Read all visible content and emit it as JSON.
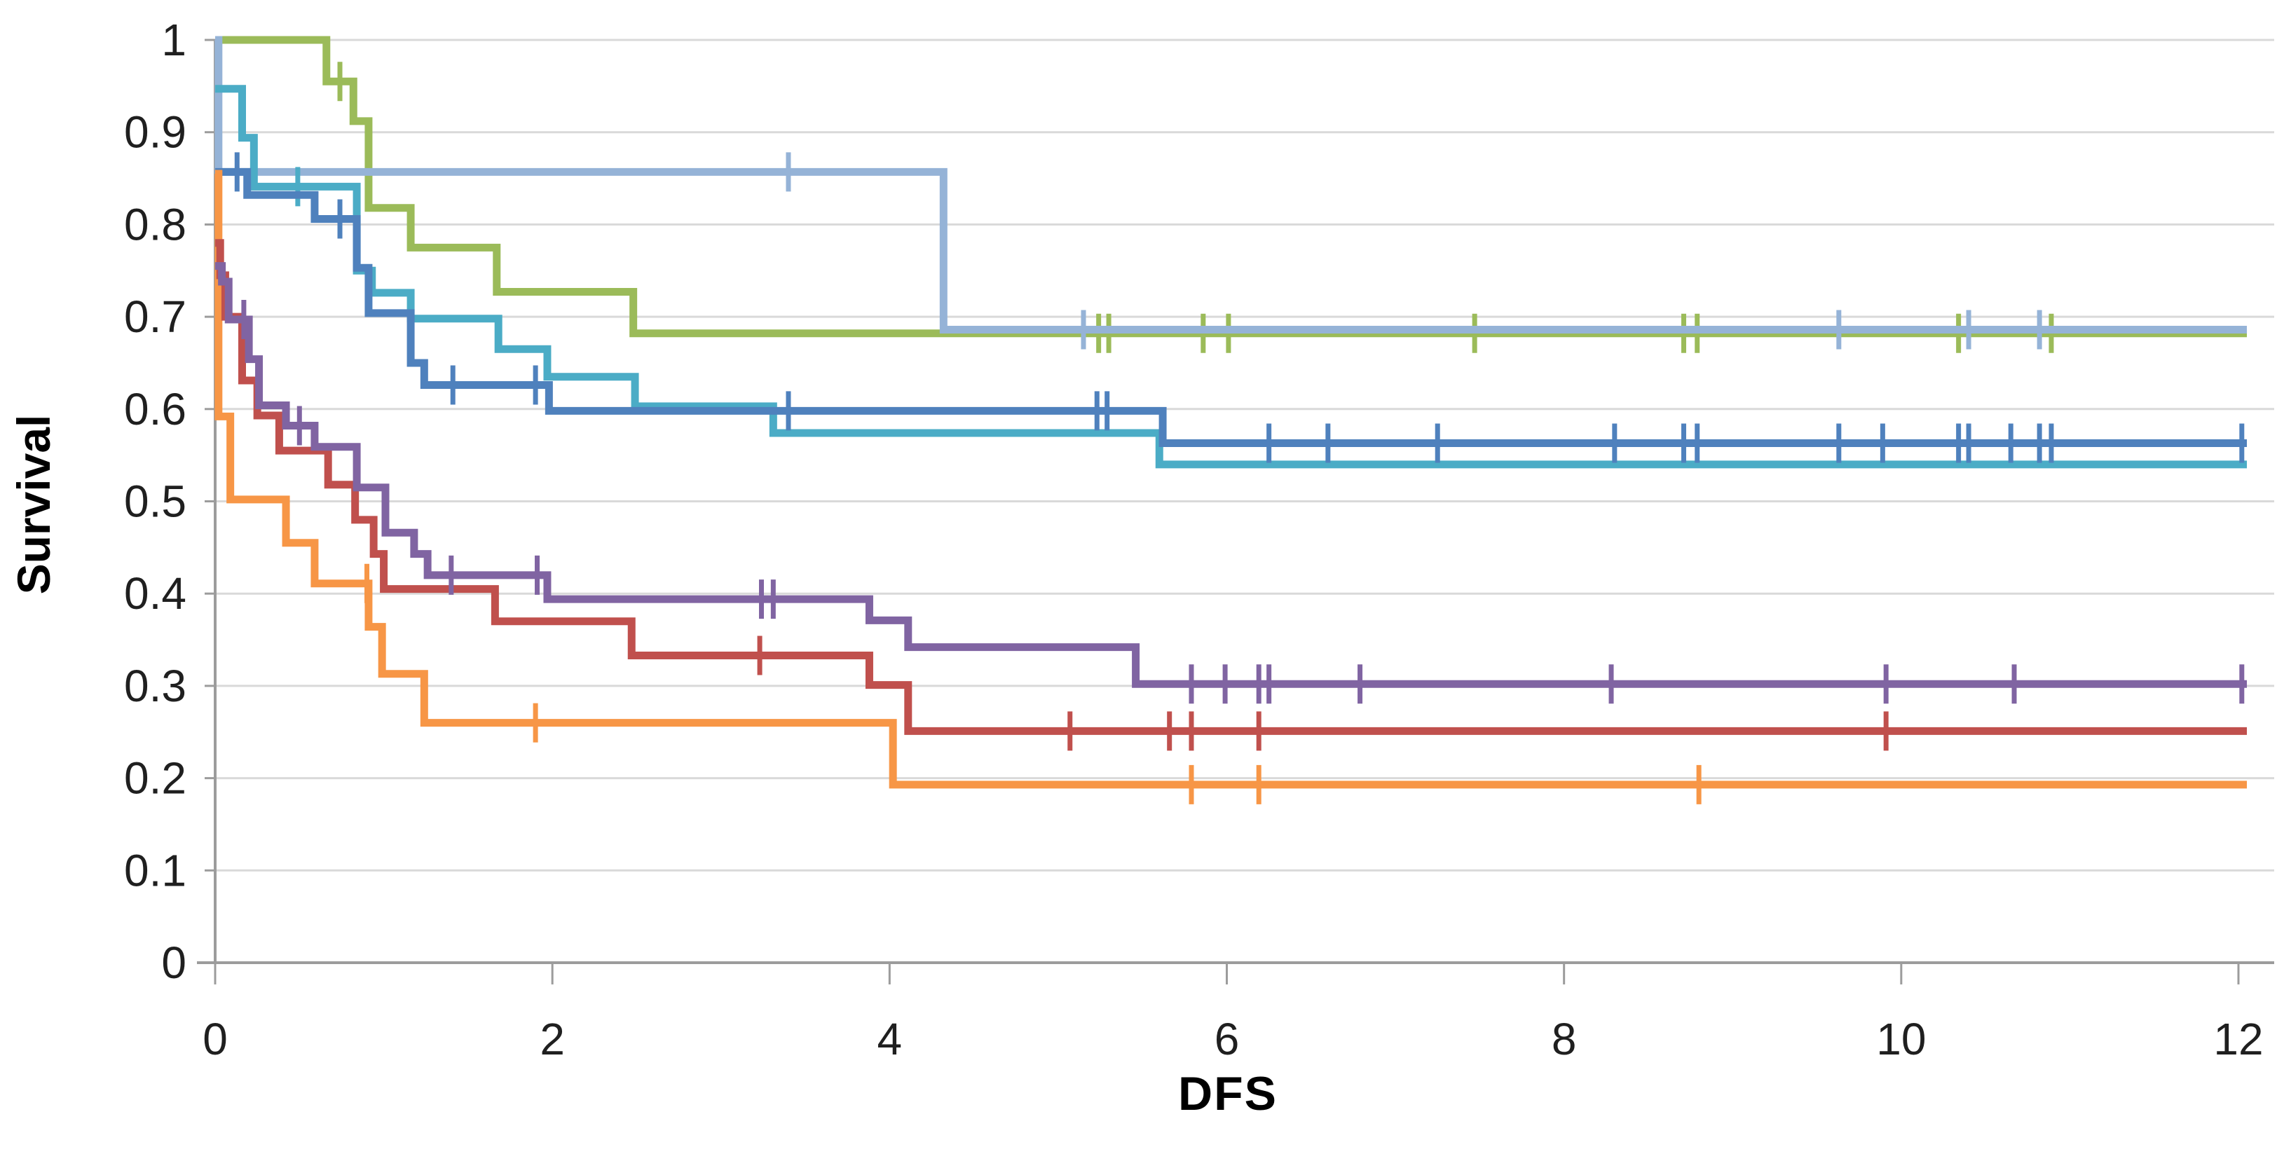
{
  "chart_data": {
    "type": "line",
    "subtype": "kaplan-meier-step",
    "title": "",
    "xlabel": "DFS",
    "ylabel": "Survival",
    "xlim": [
      0,
      12
    ],
    "ylim": [
      0,
      1
    ],
    "x_end": 12.05,
    "grid": "horizontal-only",
    "legend_position": "none",
    "xticks": {
      "values": [
        0,
        2,
        4,
        6,
        8,
        10,
        12
      ],
      "labels": [
        "0",
        "2",
        "4",
        "6",
        "8",
        "10",
        "12"
      ]
    },
    "yticks": {
      "values": [
        1,
        0.9,
        0.8,
        0.7,
        0.6,
        0.5,
        0.4,
        0.3,
        0.2,
        0.1,
        0
      ],
      "labels": [
        "1",
        "0.9",
        "0.8",
        "0.7",
        "0.6",
        "0.5",
        "0.4",
        "0.3",
        "0.2",
        "0.1",
        "0"
      ]
    },
    "colors": {
      "gridline": "#D9D9D9",
      "axis": "#9C9C9C",
      "tick_text": "#1F1F1F"
    },
    "series": [
      {
        "name": "olive-green",
        "color": "#9BBB59",
        "steps": [
          [
            0,
            1
          ],
          [
            0.66,
            0.955
          ],
          [
            0.82,
            0.912
          ],
          [
            0.91,
            0.818
          ],
          [
            1.16,
            0.775
          ],
          [
            1.67,
            0.727
          ],
          [
            2.48,
            0.682
          ]
        ],
        "censors": [
          [
            0.74,
            0.955
          ],
          [
            5.24,
            0.682
          ],
          [
            5.3,
            0.682
          ],
          [
            5.86,
            0.682
          ],
          [
            6.01,
            0.682
          ],
          [
            7.47,
            0.682
          ],
          [
            8.71,
            0.682
          ],
          [
            8.79,
            0.682
          ],
          [
            10.34,
            0.682
          ],
          [
            10.89,
            0.682
          ]
        ]
      },
      {
        "name": "light-blue",
        "color": "#95B3D7",
        "steps": [
          [
            0,
            1
          ],
          [
            0.02,
            0.857
          ],
          [
            4.32,
            0.686
          ]
        ],
        "censors": [
          [
            3.4,
            0.857
          ],
          [
            5.15,
            0.686
          ],
          [
            9.63,
            0.686
          ],
          [
            10.4,
            0.686
          ],
          [
            10.82,
            0.686
          ]
        ]
      },
      {
        "name": "teal",
        "color": "#4BACC6",
        "steps": [
          [
            0,
            0.947
          ],
          [
            0.16,
            0.894
          ],
          [
            0.23,
            0.841
          ],
          [
            0.84,
            0.75
          ],
          [
            0.93,
            0.726
          ],
          [
            1.16,
            0.698
          ],
          [
            1.68,
            0.665
          ],
          [
            1.97,
            0.635
          ],
          [
            2.49,
            0.603
          ],
          [
            3.31,
            0.574
          ],
          [
            5.6,
            0.54
          ]
        ],
        "censors": [
          [
            0.49,
            0.841
          ]
        ]
      },
      {
        "name": "blue",
        "color": "#4F81BD",
        "steps": [
          [
            0,
            0.857
          ],
          [
            0.19,
            0.832
          ],
          [
            0.59,
            0.806
          ],
          [
            0.84,
            0.753
          ],
          [
            0.91,
            0.704
          ],
          [
            1.16,
            0.65
          ],
          [
            1.24,
            0.626
          ],
          [
            1.98,
            0.598
          ],
          [
            5.62,
            0.563
          ]
        ],
        "censors": [
          [
            0.13,
            0.857
          ],
          [
            0.74,
            0.806
          ],
          [
            1.41,
            0.626
          ],
          [
            1.9,
            0.626
          ],
          [
            3.4,
            0.598
          ],
          [
            5.23,
            0.598
          ],
          [
            5.29,
            0.598
          ],
          [
            6.25,
            0.563
          ],
          [
            6.6,
            0.563
          ],
          [
            7.25,
            0.563
          ],
          [
            8.3,
            0.563
          ],
          [
            8.71,
            0.563
          ],
          [
            8.79,
            0.563
          ],
          [
            9.63,
            0.563
          ],
          [
            9.89,
            0.563
          ],
          [
            10.34,
            0.563
          ],
          [
            10.4,
            0.563
          ],
          [
            10.65,
            0.563
          ],
          [
            10.82,
            0.563
          ],
          [
            10.89,
            0.563
          ],
          [
            12.02,
            0.563
          ]
        ]
      },
      {
        "name": "orange",
        "color": "#F79646",
        "steps": [
          [
            0,
            0.855
          ],
          [
            0.02,
            0.592
          ],
          [
            0.09,
            0.502
          ],
          [
            0.42,
            0.455
          ],
          [
            0.59,
            0.411
          ],
          [
            0.91,
            0.364
          ],
          [
            0.99,
            0.313
          ],
          [
            1.24,
            0.26
          ],
          [
            4.02,
            0.193
          ]
        ],
        "censors": [
          [
            0.9,
            0.411
          ],
          [
            1.9,
            0.26
          ],
          [
            5.79,
            0.193
          ],
          [
            6.19,
            0.193
          ],
          [
            8.8,
            0.193
          ]
        ]
      },
      {
        "name": "red",
        "color": "#C0504D",
        "steps": [
          [
            0,
            0.78
          ],
          [
            0.03,
            0.745
          ],
          [
            0.06,
            0.7
          ],
          [
            0.16,
            0.631
          ],
          [
            0.25,
            0.593
          ],
          [
            0.38,
            0.555
          ],
          [
            0.67,
            0.518
          ],
          [
            0.83,
            0.48
          ],
          [
            0.94,
            0.443
          ],
          [
            1.0,
            0.405
          ],
          [
            1.66,
            0.37
          ],
          [
            2.47,
            0.333
          ],
          [
            3.88,
            0.301
          ],
          [
            4.11,
            0.251
          ]
        ],
        "censors": [
          [
            3.23,
            0.333
          ],
          [
            5.07,
            0.251
          ],
          [
            5.66,
            0.251
          ],
          [
            5.79,
            0.251
          ],
          [
            6.19,
            0.251
          ],
          [
            9.91,
            0.251
          ]
        ]
      },
      {
        "name": "purple",
        "color": "#8064A2",
        "steps": [
          [
            0,
            0.755
          ],
          [
            0.04,
            0.738
          ],
          [
            0.08,
            0.697
          ],
          [
            0.2,
            0.654
          ],
          [
            0.26,
            0.604
          ],
          [
            0.42,
            0.582
          ],
          [
            0.59,
            0.559
          ],
          [
            0.84,
            0.515
          ],
          [
            1.01,
            0.466
          ],
          [
            1.18,
            0.443
          ],
          [
            1.26,
            0.42
          ],
          [
            1.97,
            0.394
          ],
          [
            3.88,
            0.371
          ],
          [
            4.11,
            0.342
          ],
          [
            5.46,
            0.302
          ]
        ],
        "censors": [
          [
            0.17,
            0.697
          ],
          [
            0.5,
            0.582
          ],
          [
            1.4,
            0.42
          ],
          [
            1.91,
            0.42
          ],
          [
            3.24,
            0.394
          ],
          [
            3.31,
            0.394
          ],
          [
            5.79,
            0.302
          ],
          [
            5.99,
            0.302
          ],
          [
            6.19,
            0.302
          ],
          [
            6.25,
            0.302
          ],
          [
            6.79,
            0.302
          ],
          [
            8.28,
            0.302
          ],
          [
            9.91,
            0.302
          ],
          [
            10.67,
            0.302
          ],
          [
            12.02,
            0.302
          ]
        ]
      }
    ]
  }
}
